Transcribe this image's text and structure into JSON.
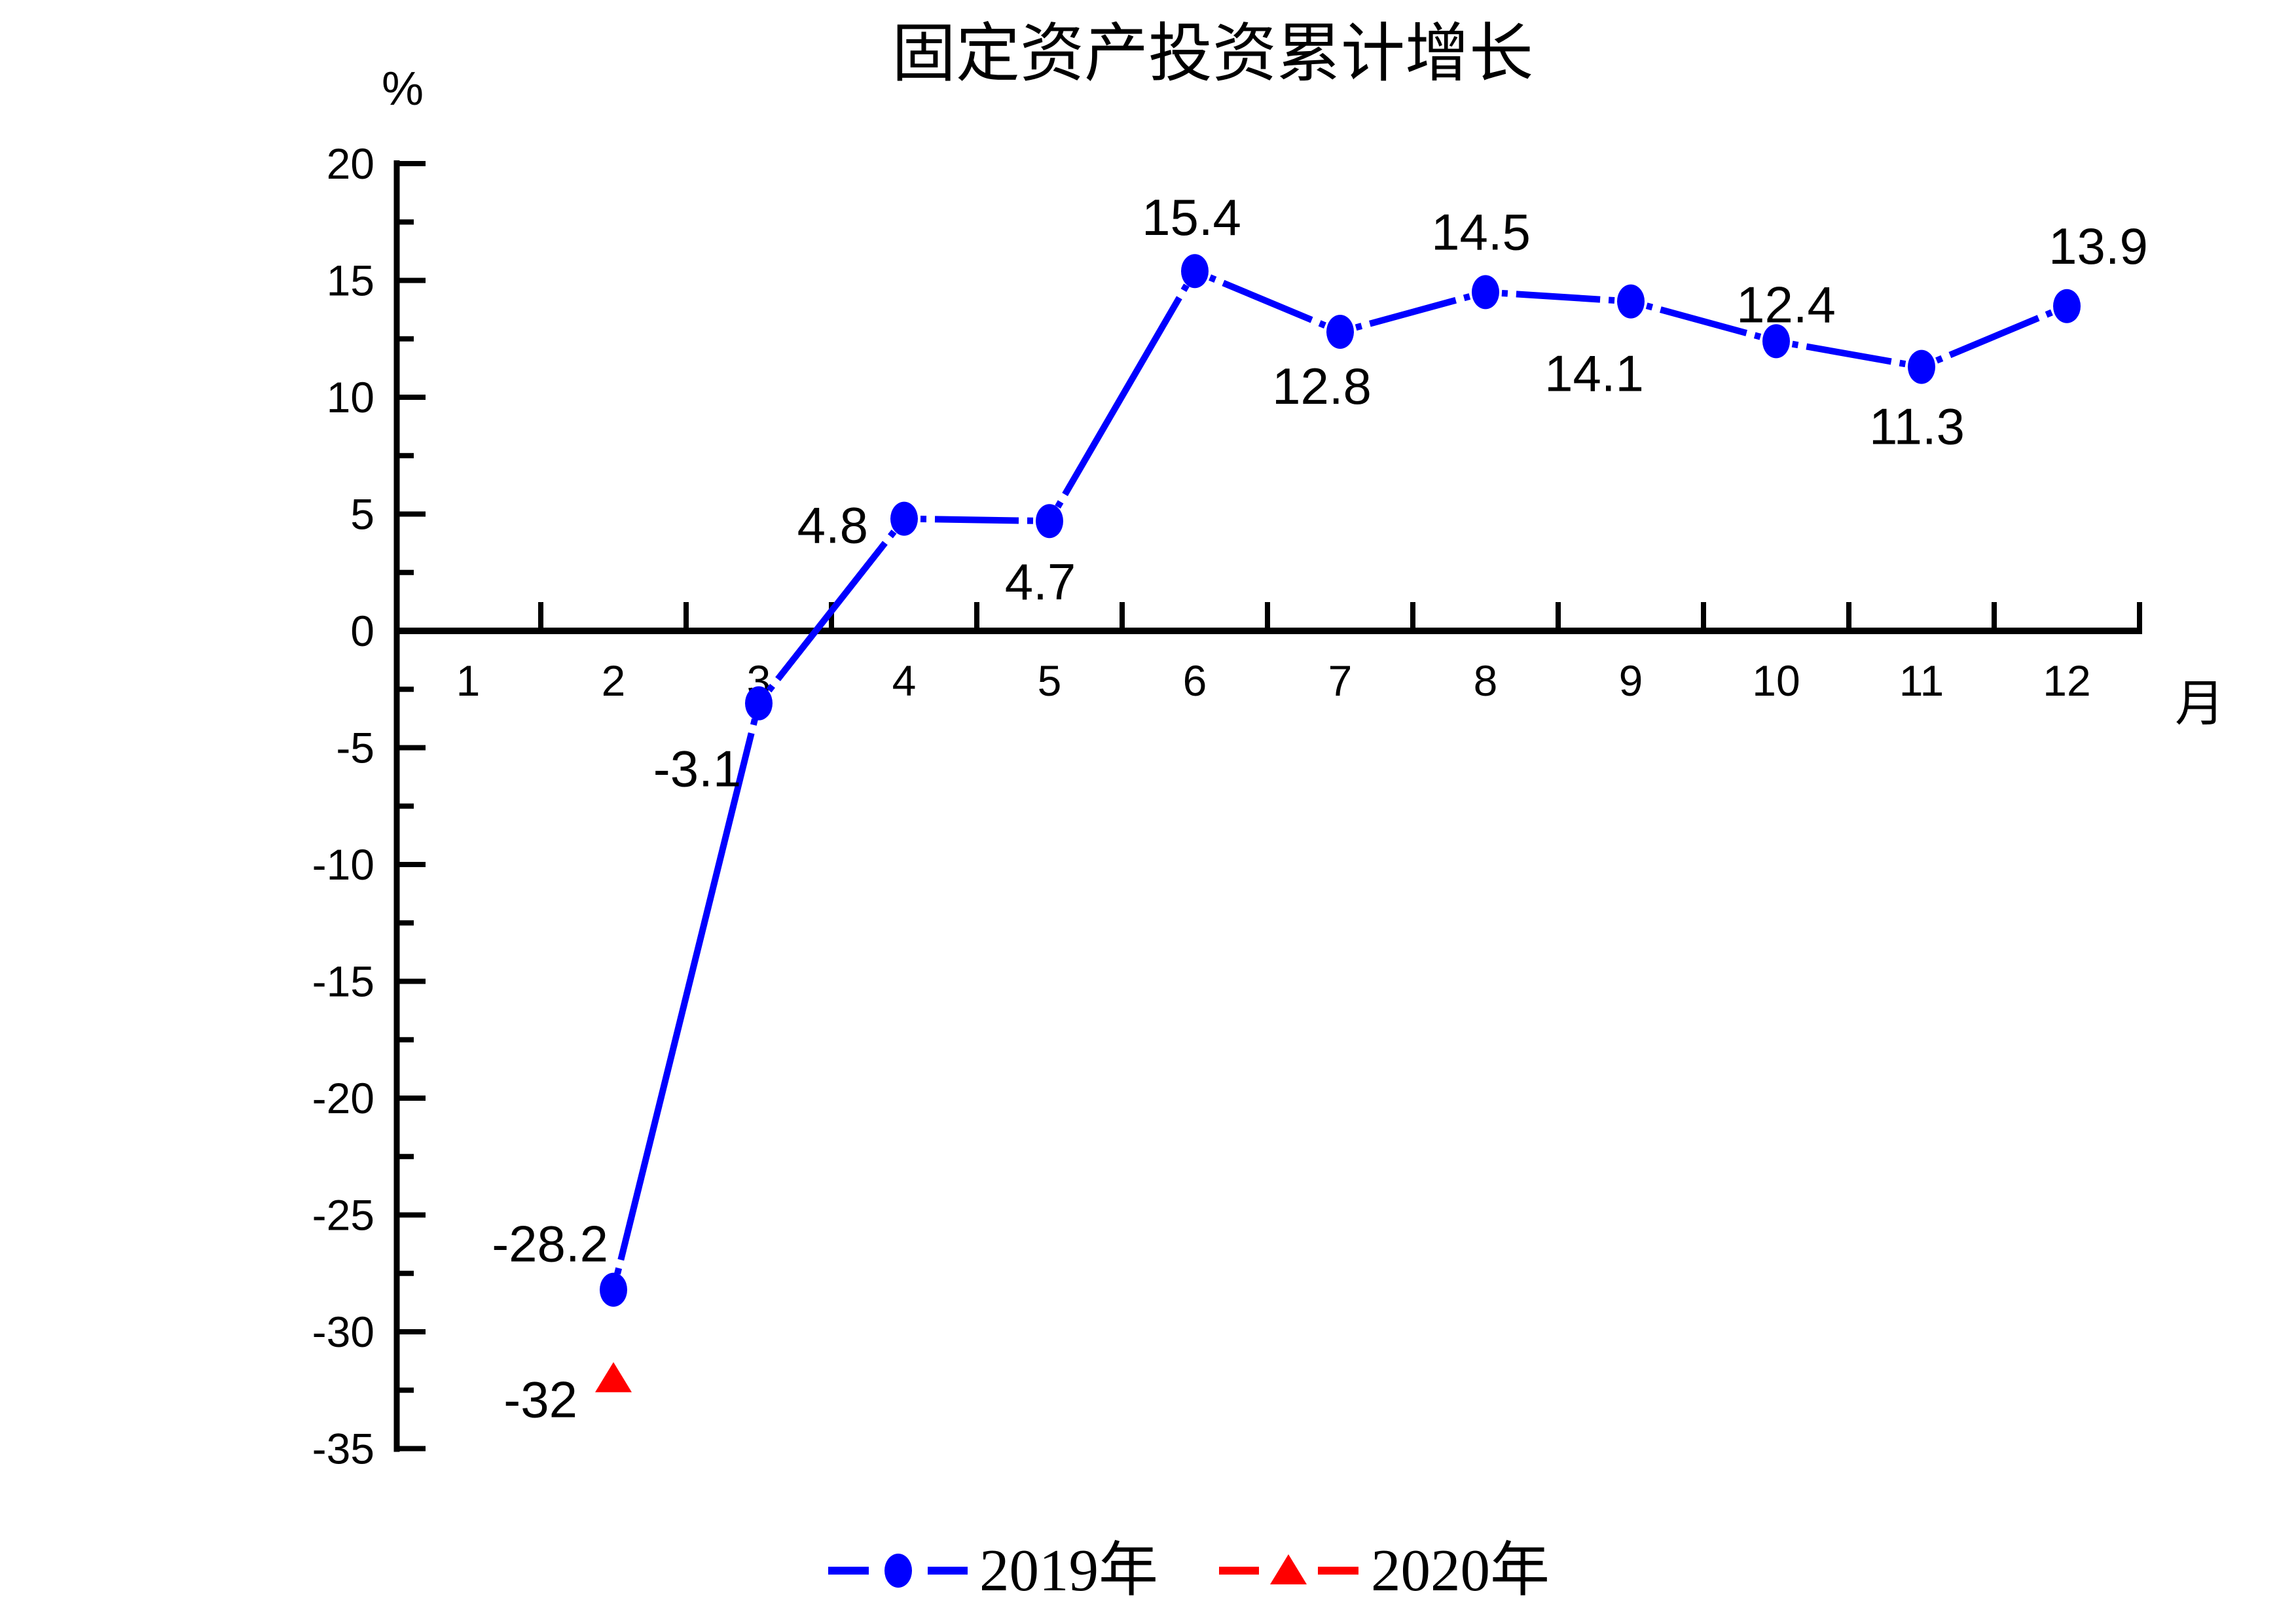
{
  "title": "固定资产投资累计增长",
  "y_axis": {
    "unit_label": "%",
    "max": 20,
    "min": -35,
    "major_step": 5,
    "tick_labels": [
      "20",
      "15",
      "10",
      "5",
      "0",
      "-5",
      "-10",
      "-15",
      "-20",
      "-25",
      "-30",
      "-35"
    ]
  },
  "x_axis": {
    "unit_label": "月",
    "tick_labels": [
      "1",
      "2",
      "3",
      "4",
      "5",
      "6",
      "7",
      "8",
      "9",
      "10",
      "11",
      "12"
    ]
  },
  "legend": [
    {
      "label": "2019年",
      "color": "#0000FF",
      "marker": "circle"
    },
    {
      "label": "2020年",
      "color": "#FF0000",
      "marker": "triangle"
    }
  ],
  "chart_data": {
    "type": "line",
    "title": "固定资产投资累计增长",
    "xlabel": "月",
    "ylabel": "%",
    "xlim": [
      0.5,
      12.5
    ],
    "ylim": [
      -35,
      20
    ],
    "grid": false,
    "legend_position": "bottom-center",
    "x_tick_labels": [
      "1",
      "2",
      "3",
      "4",
      "5",
      "6",
      "7",
      "8",
      "9",
      "10",
      "11",
      "12"
    ],
    "y_tick_labels": [
      "20",
      "15",
      "10",
      "5",
      "0",
      "-5",
      "-10",
      "-15",
      "-20",
      "-25",
      "-30",
      "-35"
    ],
    "series": [
      {
        "name": "2019年",
        "color": "#0000FF",
        "marker": "circle",
        "points": [
          {
            "x": 2,
            "y": -28.2,
            "label": "-28.2",
            "anchor": "end",
            "dx": -8,
            "dy": -70
          },
          {
            "x": 3,
            "y": -3.1,
            "label": "-3.1",
            "anchor": "middle",
            "dx": -94,
            "dy": 100
          },
          {
            "x": 4,
            "y": 4.8,
            "label": "4.8",
            "anchor": "end",
            "dx": -55,
            "dy": 10
          },
          {
            "x": 5,
            "y": 4.7,
            "label": "4.7",
            "anchor": "middle",
            "dx": -14,
            "dy": 93
          },
          {
            "x": 6,
            "y": 15.4,
            "label": "15.4",
            "anchor": "middle",
            "dx": -5,
            "dy": -82
          },
          {
            "x": 7,
            "y": 12.8,
            "label": "12.8",
            "anchor": "middle",
            "dx": -28,
            "dy": 83
          },
          {
            "x": 8,
            "y": 14.5,
            "label": "14.5",
            "anchor": "middle",
            "dx": -7,
            "dy": -92
          },
          {
            "x": 9,
            "y": 14.1,
            "label": "14.1",
            "anchor": "middle",
            "dx": -56,
            "dy": 110
          },
          {
            "x": 10,
            "y": 12.4,
            "label": "12.4",
            "anchor": "middle",
            "dx": 15,
            "dy": -56
          },
          {
            "x": 11,
            "y": 11.3,
            "label": "11.3",
            "anchor": "middle",
            "dx": -7,
            "dy": 91
          },
          {
            "x": 12,
            "y": 13.9,
            "label": "13.9",
            "anchor": "middle",
            "dx": 48,
            "dy": -92
          }
        ]
      },
      {
        "name": "2020年",
        "color": "#FF0000",
        "marker": "triangle",
        "points": [
          {
            "x": 2,
            "y": -32,
            "label": "-32",
            "anchor": "end",
            "dx": -55,
            "dy": 32
          }
        ]
      }
    ]
  }
}
